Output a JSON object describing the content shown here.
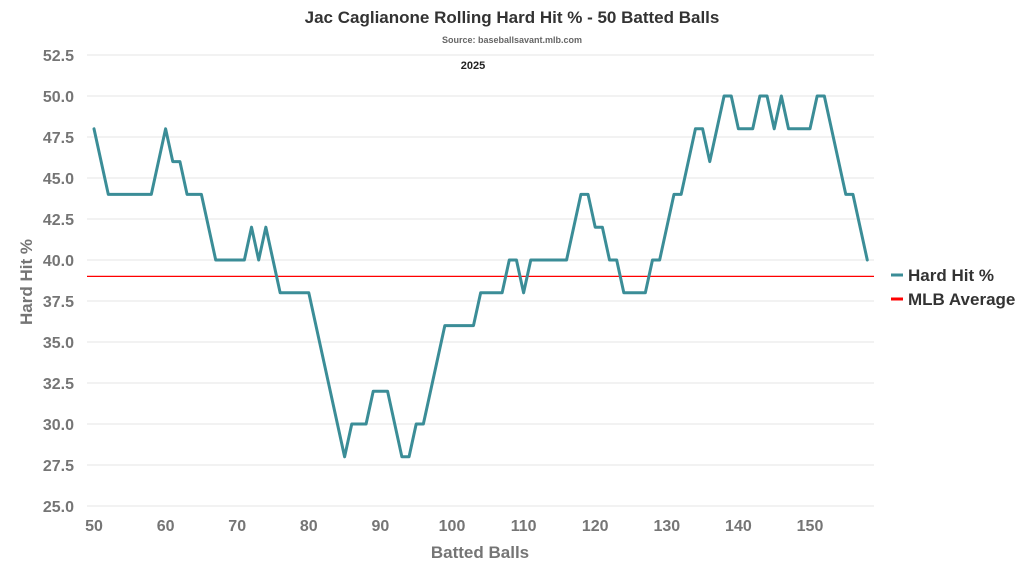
{
  "chart_data": {
    "type": "line",
    "title": "Jac Caglianone Rolling Hard Hit % - 50 Batted Balls",
    "subtitle": "Source: baseballsavant.mlb.com",
    "annotation": "2025",
    "xlabel": "Batted Balls",
    "ylabel": "Hard Hit %",
    "xlim": [
      50,
      158
    ],
    "ylim": [
      25,
      52.5
    ],
    "x_ticks": [
      "50",
      "60",
      "70",
      "80",
      "90",
      "100",
      "110",
      "120",
      "130",
      "140",
      "150"
    ],
    "y_ticks": [
      "25.0",
      "27.5",
      "30.0",
      "32.5",
      "35.0",
      "37.5",
      "40.0",
      "42.5",
      "45.0",
      "47.5",
      "50.0",
      "52.5"
    ],
    "grid": true,
    "legend_position": "right",
    "series": [
      {
        "name": "Hard Hit %",
        "color": "#3b8d97",
        "points": [
          [
            50,
            48
          ],
          [
            52,
            44
          ],
          [
            58,
            44
          ],
          [
            60,
            48
          ],
          [
            61,
            46
          ],
          [
            62,
            46
          ],
          [
            63,
            44
          ],
          [
            65,
            44
          ],
          [
            67,
            40
          ],
          [
            71,
            40
          ],
          [
            72,
            42
          ],
          [
            73,
            40
          ],
          [
            74,
            42
          ],
          [
            76,
            38
          ],
          [
            80,
            38
          ],
          [
            85,
            28
          ],
          [
            86,
            30
          ],
          [
            88,
            30
          ],
          [
            89,
            32
          ],
          [
            91,
            32
          ],
          [
            93,
            28
          ],
          [
            94,
            28
          ],
          [
            95,
            30
          ],
          [
            96,
            30
          ],
          [
            99,
            36
          ],
          [
            103,
            36
          ],
          [
            104,
            38
          ],
          [
            107,
            38
          ],
          [
            108,
            40
          ],
          [
            109,
            40
          ],
          [
            110,
            38
          ],
          [
            111,
            40
          ],
          [
            116,
            40
          ],
          [
            118,
            44
          ],
          [
            119,
            44
          ],
          [
            120,
            42
          ],
          [
            121,
            42
          ],
          [
            122,
            40
          ],
          [
            123,
            40
          ],
          [
            124,
            38
          ],
          [
            127,
            38
          ],
          [
            128,
            40
          ],
          [
            129,
            40
          ],
          [
            131,
            44
          ],
          [
            132,
            44
          ],
          [
            134,
            48
          ],
          [
            135,
            48
          ],
          [
            136,
            46
          ],
          [
            138,
            50
          ],
          [
            139,
            50
          ],
          [
            140,
            48
          ],
          [
            142,
            48
          ],
          [
            143,
            50
          ],
          [
            144,
            50
          ],
          [
            145,
            48
          ],
          [
            146,
            50
          ],
          [
            147,
            48
          ],
          [
            150,
            48
          ],
          [
            151,
            50
          ],
          [
            152,
            50
          ],
          [
            155,
            44
          ],
          [
            156,
            44
          ],
          [
            158,
            40
          ]
        ]
      },
      {
        "name": "MLB Average",
        "color": "#ff0000",
        "type": "hline",
        "value": 39
      }
    ]
  }
}
